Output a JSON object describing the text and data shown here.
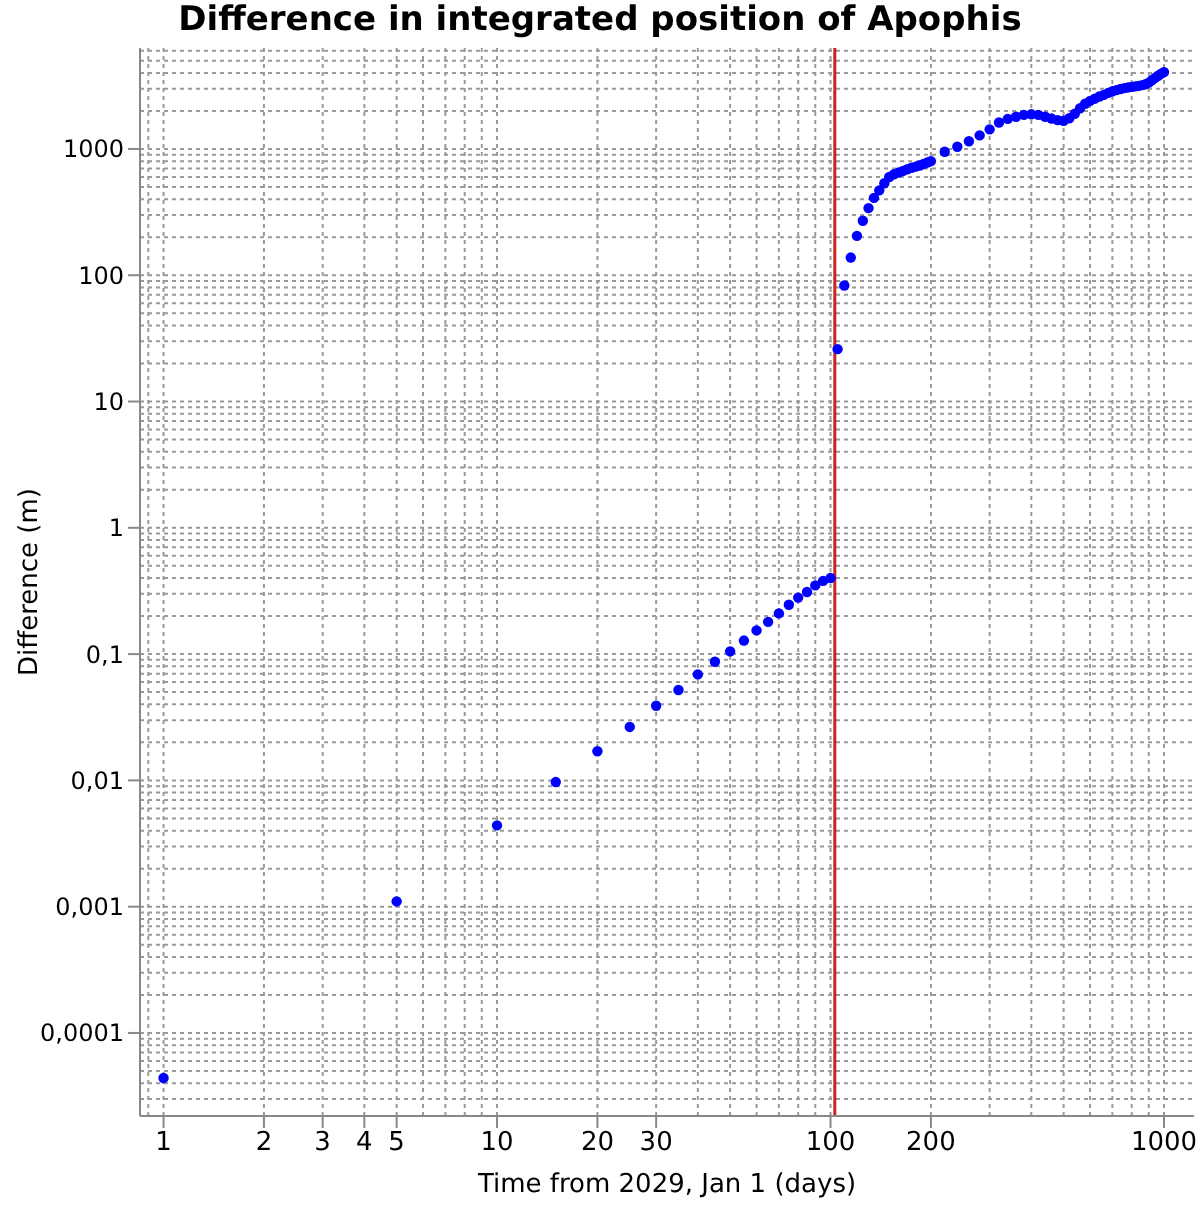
{
  "chart_data": {
    "type": "scatter",
    "title": "Difference in integrated position of Apophis",
    "xlabel": "Time from 2029, Jan 1 (days)",
    "ylabel": "Difference (m)",
    "log": "xy",
    "grid": true,
    "legend": false,
    "marker": "circle",
    "xlim": [
      0.85,
      1230
    ],
    "xticks": [
      1,
      2,
      3,
      4,
      5,
      10,
      20,
      30,
      100,
      200,
      1000
    ],
    "ylim": [
      2.2e-05,
      6300
    ],
    "yticks": [
      {
        "value": 0.0001,
        "label": "0,0001"
      },
      {
        "value": 0.001,
        "label": "0,001"
      },
      {
        "value": 0.01,
        "label": "0,01"
      },
      {
        "value": 0.1,
        "label": "0,1"
      },
      1,
      10,
      100,
      1000
    ],
    "ref_lines": [
      {
        "axis": "x",
        "value": 103,
        "color": "#cc2222"
      }
    ],
    "series": [
      {
        "color": "#0000ff",
        "x": [
          1,
          5,
          10,
          15,
          20,
          25,
          30,
          35,
          40,
          45,
          50,
          55,
          60,
          65,
          70,
          75,
          80,
          85,
          90,
          95,
          100,
          105,
          110,
          115,
          120,
          125,
          130,
          135,
          140,
          145,
          150,
          155,
          160,
          165,
          170,
          175,
          180,
          185,
          190,
          195,
          200,
          220,
          240,
          260,
          280,
          300,
          320,
          340,
          360,
          380,
          400,
          420,
          440,
          460,
          480,
          500,
          520,
          540,
          560,
          580,
          600,
          620,
          640,
          660,
          680,
          700,
          720,
          740,
          760,
          780,
          800,
          820,
          840,
          860,
          880,
          900,
          920,
          940,
          960,
          980,
          1000
        ],
        "values": [
          4.4e-05,
          0.0011,
          0.0044,
          0.0097,
          0.017,
          0.0265,
          0.039,
          0.052,
          0.069,
          0.087,
          0.105,
          0.128,
          0.154,
          0.18,
          0.21,
          0.246,
          0.28,
          0.31,
          0.35,
          0.38,
          0.4,
          26,
          83,
          138,
          205,
          270,
          340,
          410,
          470,
          535,
          600,
          630,
          650,
          670,
          690,
          710,
          725,
          740,
          760,
          780,
          800,
          950,
          1040,
          1150,
          1280,
          1430,
          1620,
          1730,
          1800,
          1860,
          1880,
          1860,
          1800,
          1740,
          1690,
          1670,
          1750,
          1900,
          2100,
          2280,
          2400,
          2500,
          2600,
          2680,
          2780,
          2860,
          2920,
          2980,
          3030,
          3070,
          3100,
          3130,
          3160,
          3200,
          3250,
          3350,
          3500,
          3650,
          3800,
          3950,
          4060
        ]
      }
    ]
  }
}
